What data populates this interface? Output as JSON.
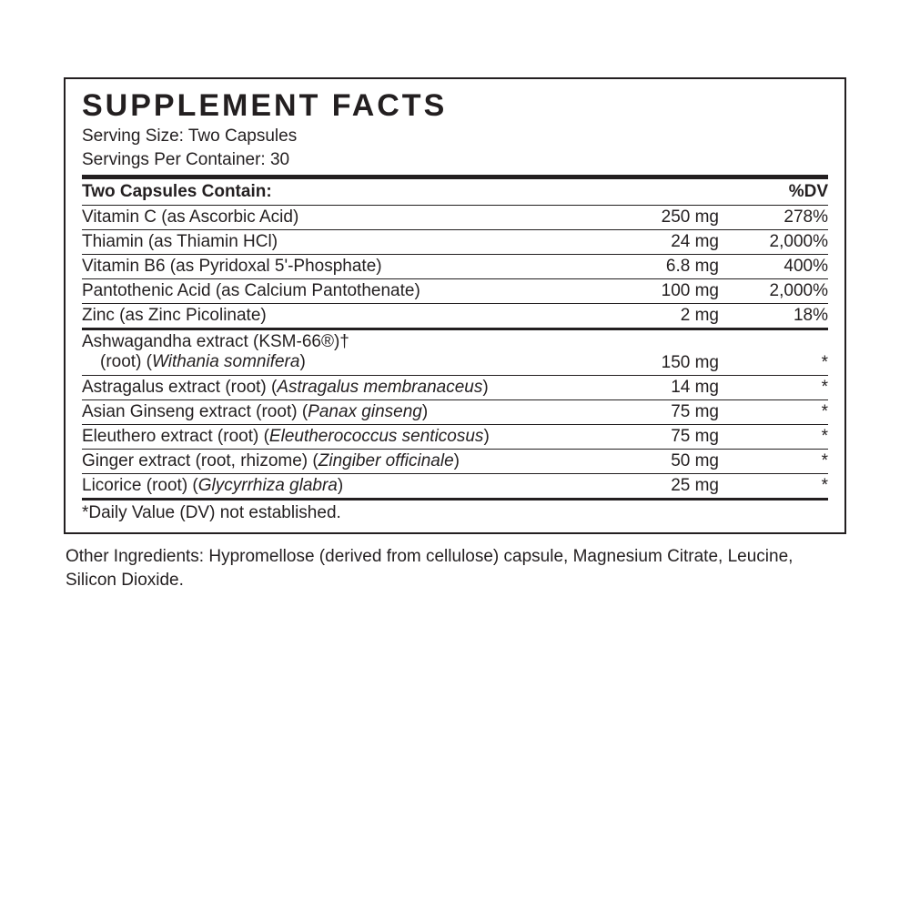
{
  "panel": {
    "title": "SUPPLEMENT FACTS",
    "serving_size_label": "Serving Size: Two Capsules",
    "servings_per_container_label": "Servings Per Container: 30",
    "header": {
      "contain_label": "Two Capsules Contain:",
      "dv_label": "%DV"
    },
    "vitamins": [
      {
        "name": "Vitamin C (as Ascorbic Acid)",
        "amount": "250 mg",
        "dv": "278%"
      },
      {
        "name": "Thiamin (as Thiamin HCl)",
        "amount": "24 mg",
        "dv": "2,000%"
      },
      {
        "name": "Vitamin B6 (as Pyridoxal 5'-Phosphate)",
        "amount": "6.8 mg",
        "dv": "400%"
      },
      {
        "name": "Pantothenic Acid (as Calcium Pantothenate)",
        "amount": "100 mg",
        "dv": "2,000%"
      },
      {
        "name": "Zinc (as Zinc Picolinate)",
        "amount": "2 mg",
        "dv": "18%"
      }
    ],
    "herbs": [
      {
        "line1": "Ashwagandha extract (KSM-66®)†",
        "line2_pre": "(root) (",
        "line2_ital": "Withania somnifera",
        "line2_post": ")",
        "amount": "150 mg",
        "dv": "*"
      },
      {
        "name_pre": "Astragalus extract (root) (",
        "name_ital": "Astragalus membranaceus",
        "name_post": ")",
        "amount": "14 mg",
        "dv": "*"
      },
      {
        "name_pre": "Asian Ginseng extract (root) (",
        "name_ital": "Panax ginseng",
        "name_post": ")",
        "amount": "75 mg",
        "dv": "*"
      },
      {
        "name_pre": "Eleuthero extract (root) (",
        "name_ital": "Eleutherococcus senticosus",
        "name_post": ")",
        "amount": "75 mg",
        "dv": "*"
      },
      {
        "name_pre": "Ginger extract (root, rhizome) (",
        "name_ital": "Zingiber officinale",
        "name_post": ")",
        "amount": "50 mg",
        "dv": "*"
      },
      {
        "name_pre": "Licorice (root) (",
        "name_ital": "Glycyrrhiza glabra",
        "name_post": ")",
        "amount": "25 mg",
        "dv": "*"
      }
    ],
    "footnote": "*Daily Value (DV) not established.",
    "other_ingredients": "Other Ingredients: Hypromellose (derived from cellulose) capsule, Magnesium Citrate, Leucine, Silicon Dioxide."
  },
  "style": {
    "text_color": "#231f20",
    "bg_color": "#ffffff",
    "title_fontsize": 34,
    "body_fontsize": 19,
    "border_width_outer": 2,
    "rule_thick": 5,
    "rule_med": 3,
    "rule_thin": 1
  }
}
